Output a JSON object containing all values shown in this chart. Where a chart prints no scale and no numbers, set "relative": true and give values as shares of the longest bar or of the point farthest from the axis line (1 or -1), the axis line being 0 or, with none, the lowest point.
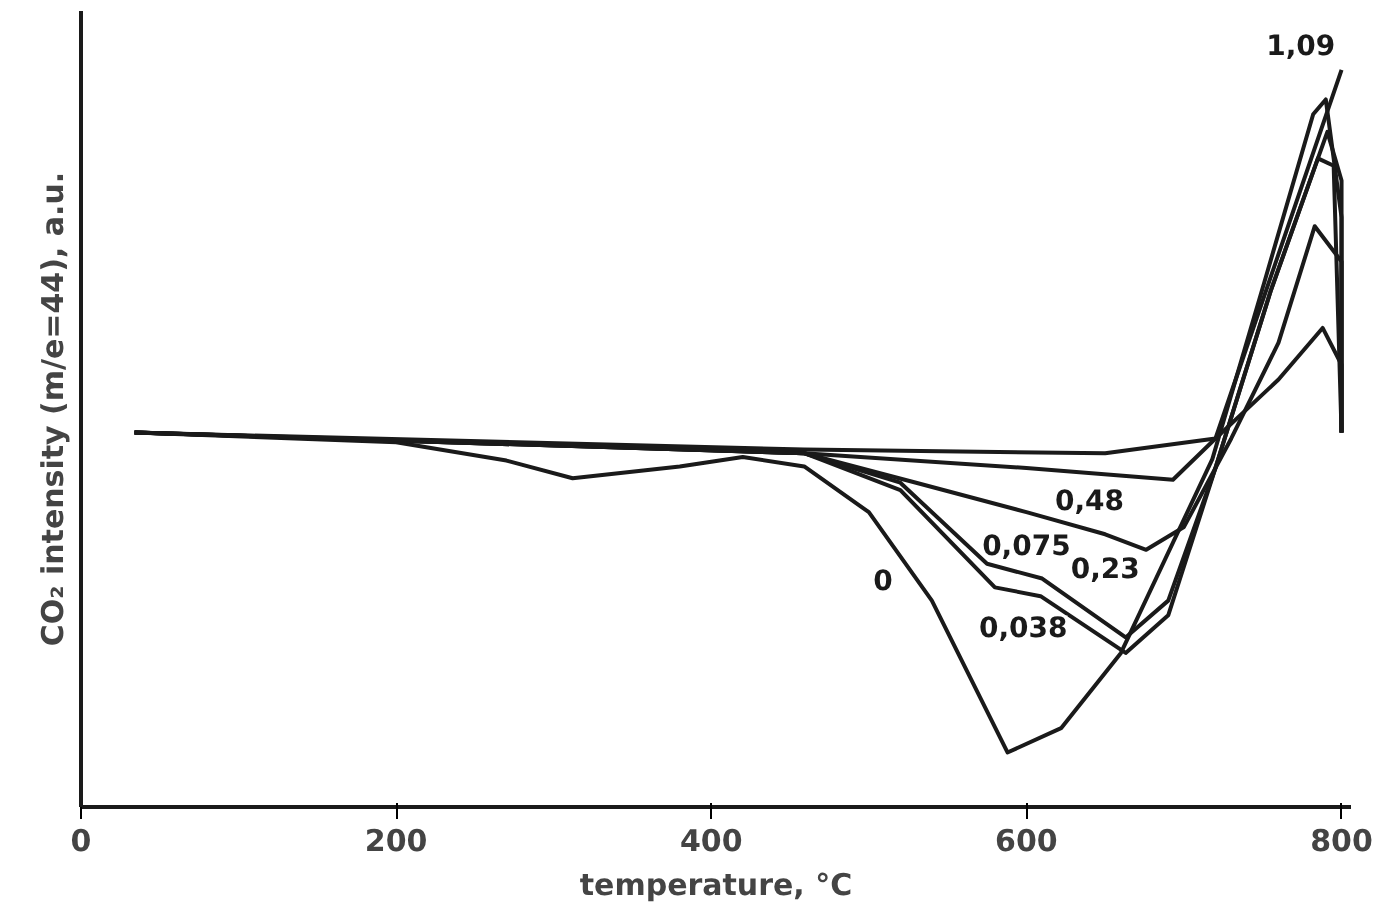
{
  "chart_data": {
    "type": "line",
    "relative": true,
    "xlabel": "temperature, °C",
    "ylabel": "CO₂ intensity (m/e=44), a.u.",
    "xlim": [
      0,
      806
    ],
    "xticks": [
      0,
      200,
      400,
      600,
      800
    ],
    "tick_labels": "x",
    "grid": false,
    "legend": false,
    "marker": "none",
    "line_style": "solid",
    "series": [
      {
        "name": "0",
        "color": "#1a1a1a",
        "x": [
          34,
          200,
          270,
          312,
          380,
          420,
          459,
          500,
          540,
          588,
          622,
          660,
          718,
          751,
          782,
          790,
          800,
          800
        ],
        "values": [
          0.508,
          0.495,
          0.47,
          0.446,
          0.462,
          0.475,
          0.462,
          0.4,
          0.28,
          0.074,
          0.107,
          0.209,
          0.472,
          0.712,
          0.94,
          0.96,
          0.8,
          0.508
        ]
      },
      {
        "name": "0,038",
        "color": "#1a1a1a",
        "x": [
          34,
          250,
          459,
          520,
          580,
          609,
          663,
          690,
          720,
          755,
          791,
          800,
          800
        ],
        "values": [
          0.508,
          0.495,
          0.48,
          0.43,
          0.298,
          0.286,
          0.209,
          0.26,
          0.46,
          0.7,
          0.916,
          0.85,
          0.508
        ]
      },
      {
        "name": "0,075",
        "color": "#1a1a1a",
        "x": [
          34,
          459,
          520,
          575,
          610,
          663,
          690,
          720,
          755,
          785,
          795,
          800
        ],
        "values": [
          0.508,
          0.48,
          0.44,
          0.33,
          0.31,
          0.23,
          0.28,
          0.46,
          0.7,
          0.88,
          0.87,
          0.508
        ]
      },
      {
        "name": "0,23",
        "color": "#1a1a1a",
        "x": [
          34,
          459,
          530,
          600,
          650,
          676,
          700,
          730,
          760,
          783,
          800,
          800
        ],
        "values": [
          0.508,
          0.48,
          0.44,
          0.4,
          0.37,
          0.349,
          0.38,
          0.5,
          0.63,
          0.788,
          0.74,
          0.508
        ]
      },
      {
        "name": "0,48",
        "color": "#1a1a1a",
        "x": [
          34,
          459,
          600,
          693,
          720,
          760,
          788,
          800,
          800
        ],
        "values": [
          0.508,
          0.48,
          0.46,
          0.444,
          0.5,
          0.58,
          0.65,
          0.6,
          0.508
        ]
      },
      {
        "name": "1,09",
        "color": "#1a1a1a",
        "x": [
          34,
          459,
          650,
          720,
          760,
          800
        ],
        "values": [
          0.508,
          0.485,
          0.48,
          0.5,
          0.75,
          1
        ]
      }
    ]
  }
}
